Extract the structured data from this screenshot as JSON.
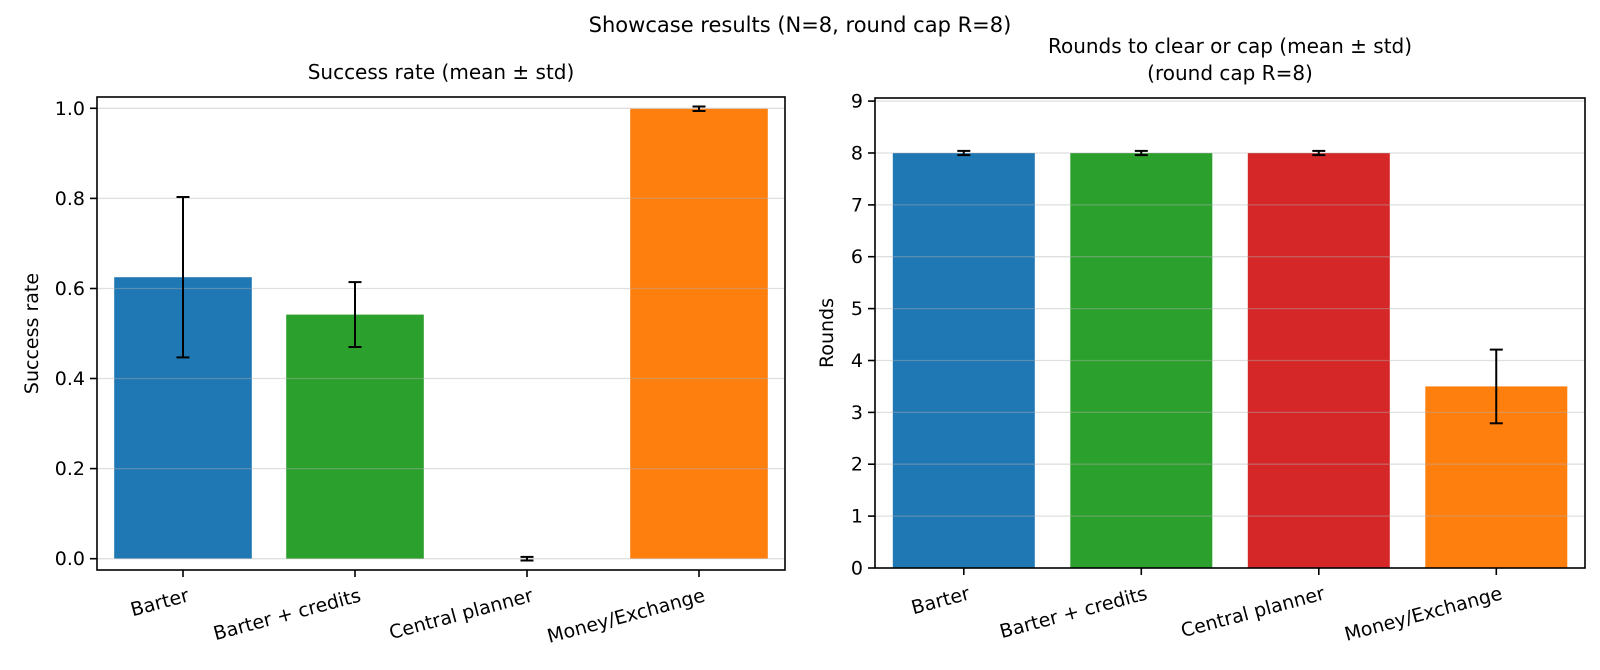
{
  "figure": {
    "suptitle": "Showcase results (N=8, round cap R=8)",
    "background_color": "#ffffff",
    "text_color": "#000000"
  },
  "chart_data": [
    {
      "type": "bar",
      "title": "Success rate (mean ± std)",
      "ylabel": "Success rate",
      "xlabel": "",
      "categories": [
        "Barter",
        "Barter + credits",
        "Central planner",
        "Money/Exchange"
      ],
      "values": [
        0.625,
        0.542,
        0.0,
        0.999
      ],
      "errors_std": [
        0.178,
        0.072,
        0.004,
        0.005
      ],
      "error_low": [
        0.447,
        0.47,
        0.0,
        0.994
      ],
      "error_high": [
        0.803,
        0.614,
        0.004,
        1.004
      ],
      "bar_colors": [
        "#1f77b4",
        "#2ca02c",
        "#d62728",
        "#ff7f0e"
      ],
      "ylim": [
        -0.025,
        1.025
      ],
      "yticks": [
        0.0,
        0.2,
        0.4,
        0.6,
        0.8,
        1.0
      ],
      "ytick_labels": [
        "0.0",
        "0.2",
        "0.4",
        "0.6",
        "0.8",
        "1.0"
      ],
      "xtick_rotation_deg": 15,
      "grid": true,
      "grid_color": "#b0b0b0",
      "error_color": "#000000",
      "legend": "none"
    },
    {
      "type": "bar",
      "title": "Rounds to clear or cap (mean ± std)\n(round cap R=8)",
      "ylabel": "Rounds",
      "xlabel": "",
      "categories": [
        "Barter",
        "Barter + credits",
        "Central planner",
        "Money/Exchange"
      ],
      "values": [
        8.0,
        8.0,
        8.0,
        3.5
      ],
      "errors_std": [
        0.04,
        0.04,
        0.04,
        0.71
      ],
      "error_low": [
        7.96,
        7.96,
        7.96,
        2.79
      ],
      "error_high": [
        8.04,
        8.04,
        8.04,
        4.21
      ],
      "bar_colors": [
        "#1f77b4",
        "#2ca02c",
        "#d62728",
        "#ff7f0e"
      ],
      "ylim": [
        0,
        9.06
      ],
      "yticks": [
        0,
        1,
        2,
        3,
        4,
        5,
        6,
        7,
        8,
        9
      ],
      "ytick_labels": [
        "0",
        "1",
        "2",
        "3",
        "4",
        "5",
        "6",
        "7",
        "8",
        "9"
      ],
      "xtick_rotation_deg": 15,
      "grid": true,
      "grid_color": "#b0b0b0",
      "error_color": "#000000",
      "legend": "none"
    }
  ]
}
